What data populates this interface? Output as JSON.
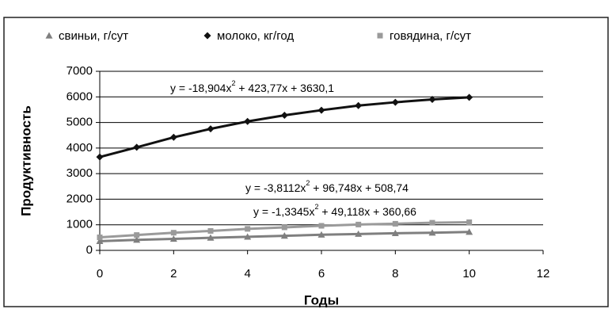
{
  "chart_data": {
    "type": "line",
    "x_label": "Годы",
    "y_label": "Продуктивность",
    "x": [
      0,
      1,
      2,
      3,
      4,
      5,
      6,
      7,
      8,
      9,
      10
    ],
    "series": [
      {
        "name": "свиньи, г/сут",
        "color": "#7f7f7f",
        "marker": "triangle",
        "values": [
          360,
          410,
          450,
          490,
          530,
          570,
          610,
          640,
          670,
          690,
          720
        ]
      },
      {
        "name": "молоко, кг/год",
        "color": "#111111",
        "marker": "diamond",
        "values": [
          3650,
          4030,
          4420,
          4750,
          5040,
          5280,
          5480,
          5660,
          5790,
          5900,
          5980
        ]
      },
      {
        "name": "говядина, г/сут",
        "color": "#9a9a9a",
        "marker": "square",
        "values": [
          510,
          600,
          690,
          760,
          840,
          900,
          960,
          1010,
          1040,
          1080,
          1100
        ]
      }
    ],
    "annotations": [
      [
        "y = -18,904x",
        "2",
        " + 423,77x + 3630,1"
      ],
      [
        "y = -3,8112x",
        "2",
        " + 96,748x + 508,74"
      ],
      [
        "y = -1,3345x",
        "2",
        " + 49,118x + 360,66"
      ]
    ],
    "xlim": [
      0,
      12
    ],
    "xticks": [
      0,
      2,
      4,
      6,
      8,
      10,
      12
    ],
    "ylim": [
      0,
      7000
    ],
    "yticks": [
      0,
      1000,
      2000,
      3000,
      4000,
      5000,
      6000,
      7000
    ],
    "grid": true
  }
}
